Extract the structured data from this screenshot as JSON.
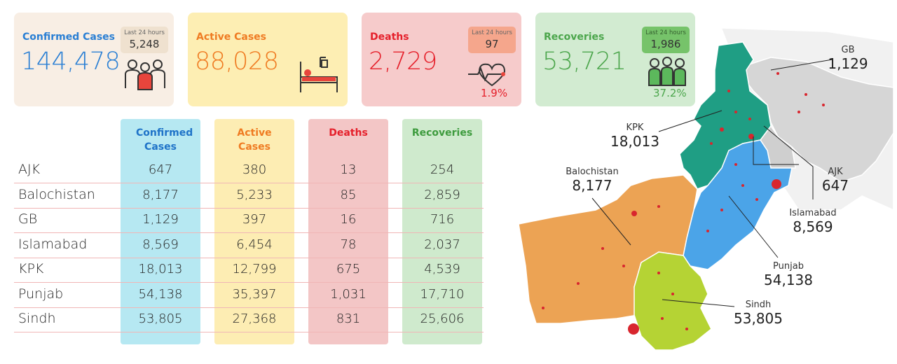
{
  "cards": [
    {
      "title": "Confirmed Cases",
      "value": "144,478",
      "last24_label": "Last 24 hours",
      "last24": "5,248"
    },
    {
      "title": "Active Cases",
      "value": "88,028"
    },
    {
      "title": "Deaths",
      "value": "2,729",
      "last24_label": "Last 24 hours",
      "last24": "97",
      "percent": "1.9%"
    },
    {
      "title": "Recoveries",
      "value": "53,721",
      "last24_label": "Last 24 hours",
      "last24": "1,986",
      "percent": "37.2%"
    }
  ],
  "table": {
    "columns": [
      "Confirmed Cases",
      "Active Cases",
      "Deaths",
      "Recoveries"
    ],
    "rows": [
      [
        "AJK",
        "647",
        "380",
        "13",
        "254"
      ],
      [
        "Balochistan",
        "8,177",
        "5,233",
        "85",
        "2,859"
      ],
      [
        "GB",
        "1,129",
        "397",
        "16",
        "716"
      ],
      [
        "Islamabad",
        "8,569",
        "6,454",
        "78",
        "2,037"
      ],
      [
        "KPK",
        "18,013",
        "12,799",
        "675",
        "4,539"
      ],
      [
        "Punjab",
        "54,138",
        "35,397",
        "1,031",
        "17,710"
      ],
      [
        "Sindh",
        "53,805",
        "27,368",
        "831",
        "25,606"
      ]
    ]
  },
  "map": {
    "labels": [
      {
        "name": "GB",
        "value": "1,129"
      },
      {
        "name": "KPK",
        "value": "18,013"
      },
      {
        "name": "Balochistan",
        "value": "8,177"
      },
      {
        "name": "AJK",
        "value": "647"
      },
      {
        "name": "Islamabad",
        "value": "8,569"
      },
      {
        "name": "Punjab",
        "value": "54,138"
      },
      {
        "name": "Sindh",
        "value": "53,805"
      }
    ]
  }
}
